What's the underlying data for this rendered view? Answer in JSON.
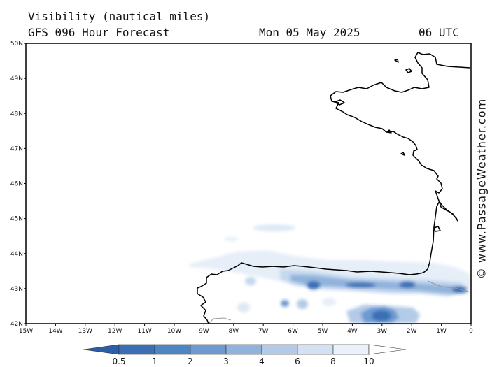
{
  "header": {
    "line1": "Visibility (nautical miles)",
    "line2": "GFS 096 Hour Forecast",
    "date": "Mon 05 May 2025",
    "time": "06 UTC"
  },
  "credit": "© www.PassageWeather.com",
  "axes": {
    "lat_labels": [
      "42N",
      "43N",
      "44N",
      "45N",
      "46N",
      "47N",
      "48N",
      "49N",
      "50N"
    ],
    "lon_labels": [
      "15W",
      "14W",
      "13W",
      "12W",
      "11W",
      "10W",
      "9W",
      "8W",
      "7W",
      "6W",
      "5W",
      "4W",
      "3W",
      "2W",
      "1W",
      "0"
    ]
  },
  "colorbar": {
    "labels": [
      "0.5",
      "1",
      "2",
      "3",
      "4",
      "6",
      "8",
      "10"
    ],
    "colors": [
      "#3a6fb6",
      "#4d84c4",
      "#6d9ad0",
      "#90b3dc",
      "#b4cbe7",
      "#d3e1f2",
      "#eaf1fa",
      "#ffffff"
    ]
  },
  "colors": {
    "coast": "#000000",
    "frame": "#000000"
  }
}
